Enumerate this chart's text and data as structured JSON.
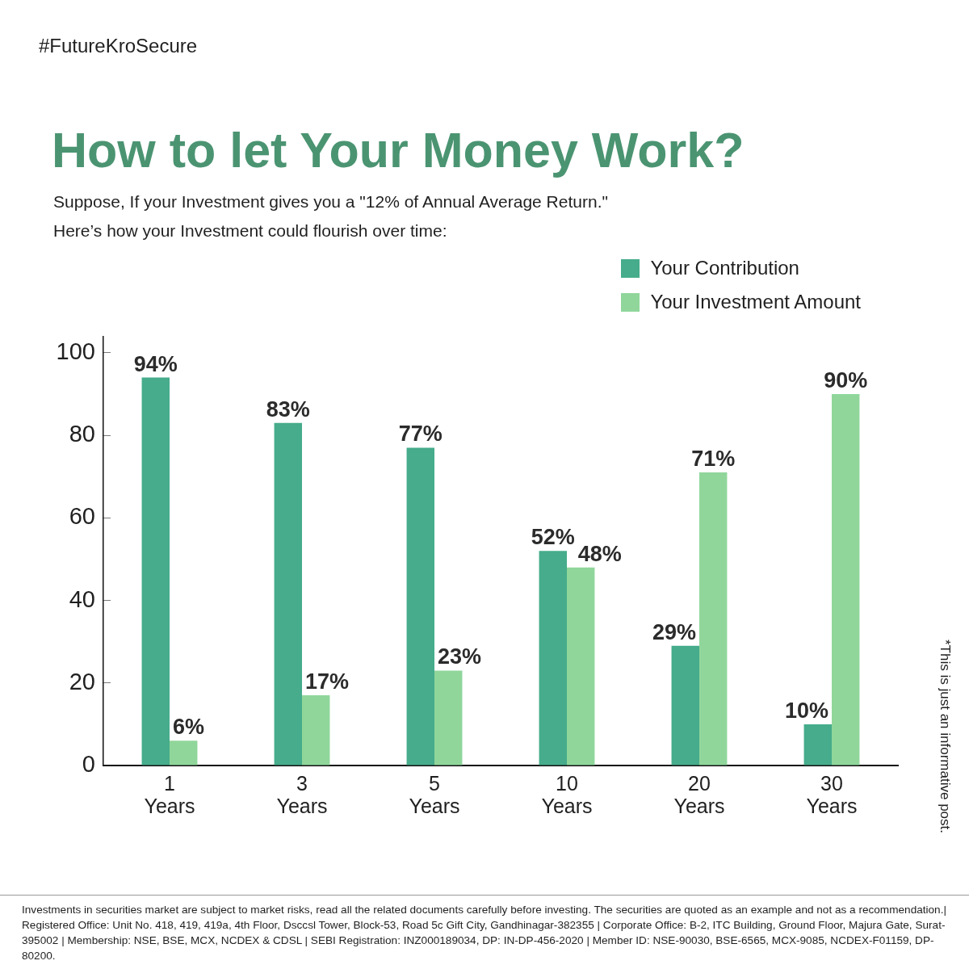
{
  "chart_data": {
    "type": "bar",
    "title": "How to let Your Money Work?",
    "subtitle": "Suppose, If your Investment gives you a \"12% of Annual Average Return.\"\nHere’s how your Investment could flourish over time:",
    "categories": [
      "1 Years",
      "3 Years",
      "5 Years",
      "10 Years",
      "20 Years",
      "30 Years"
    ],
    "series": [
      {
        "name": "Your Contribution",
        "color": "#46ac8b",
        "values": [
          94,
          83,
          77,
          52,
          29,
          10
        ],
        "value_labels": [
          "94%",
          "83%",
          "77%",
          "52%",
          "29%",
          "10%"
        ]
      },
      {
        "name": "Your Investment Amount",
        "color": "#90d69b",
        "values": [
          6,
          17,
          23,
          48,
          71,
          90
        ],
        "value_labels": [
          "6%",
          "17%",
          "23%",
          "48%",
          "71%",
          "90%"
        ]
      }
    ],
    "ylim": [
      0,
      104
    ],
    "yticks": [
      0,
      20,
      40,
      60,
      80,
      100
    ],
    "grid": false,
    "legend": "top right",
    "annotations": [
      "#FutureKroSecure",
      "*This is just an informative post.",
      "Investments in securities market are subject to market risks, read all the related documents carefully before investing. The securities are quoted as an example and not as a recommendation.| Registered Office: Unit No. 418, 419, 419a, 4th Floor, Dsccsl Tower, Block-53, Road 5c Gift City, Gandhinagar-382355 | Corporate Office: B-2, ITC Building, Ground Floor, Majura Gate, Surat-395002 | Membership: NSE, BSE, MCX, NCDEX & CDSL | SEBI Registration: INZ000189034, DP: IN-DP-456-2020 | Member ID: NSE-90030, BSE-6565, MCX-9085, NCDEX-F01159, DP- 80200."
    ]
  }
}
